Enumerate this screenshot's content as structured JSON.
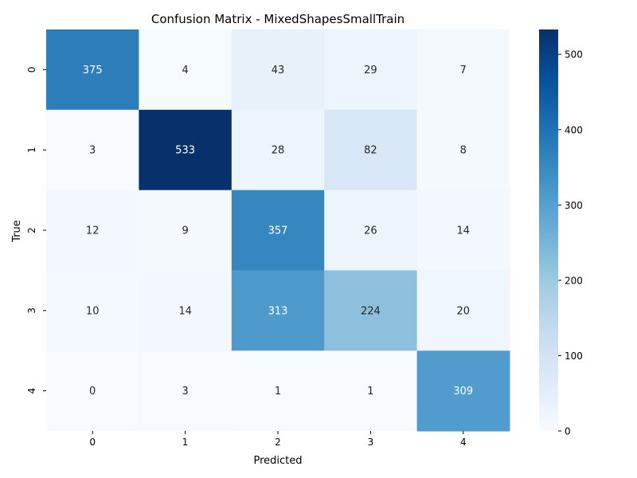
{
  "chart_data": {
    "type": "heatmap",
    "title": "Confusion Matrix - MixedShapesSmallTrain",
    "xlabel": "Predicted",
    "ylabel": "True",
    "x_categories": [
      "0",
      "1",
      "2",
      "3",
      "4"
    ],
    "y_categories": [
      "0",
      "1",
      "2",
      "3",
      "4"
    ],
    "values": [
      [
        375,
        4,
        43,
        29,
        7
      ],
      [
        3,
        533,
        28,
        82,
        8
      ],
      [
        12,
        9,
        357,
        26,
        14
      ],
      [
        10,
        14,
        313,
        224,
        20
      ],
      [
        0,
        3,
        1,
        1,
        309
      ]
    ],
    "colormap": "Blues",
    "colorbar": {
      "range": [
        0,
        533
      ],
      "ticks": [
        0,
        100,
        200,
        300,
        400,
        500
      ]
    }
  }
}
